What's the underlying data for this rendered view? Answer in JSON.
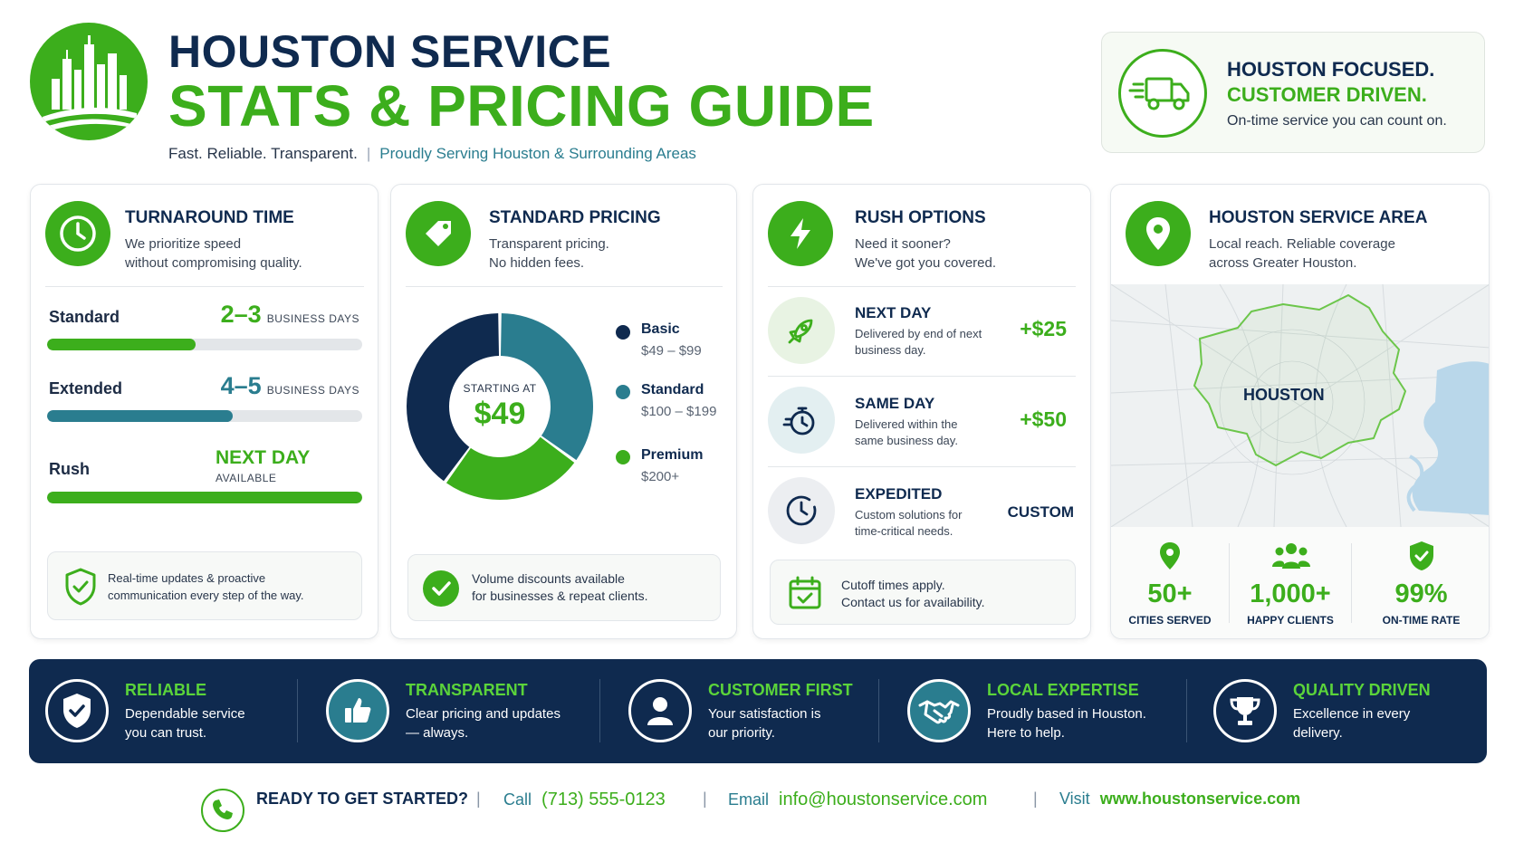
{
  "header": {
    "title_line1": "HOUSTON SERVICE",
    "title_line2": "STATS & PRICING GUIDE",
    "tagline": "Fast. Reliable. Transparent.",
    "subtagline": "Proudly Serving Houston & Surrounding Areas",
    "logo_icon": "city-skyline-icon"
  },
  "focus": {
    "line1": "HOUSTON FOCUSED.",
    "line2": "CUSTOMER DRIVEN.",
    "line3": "On-time service you can count on.",
    "icon": "delivery-truck-icon"
  },
  "turnaround": {
    "title": "TURNAROUND TIME",
    "subtitle_1": "We prioritize speed",
    "subtitle_2": "without compromising quality.",
    "rows": [
      {
        "label": "Standard",
        "value": "2–3",
        "unit": "BUSINESS DAYS",
        "fill": 0.47,
        "color": "#3cae1c"
      },
      {
        "label": "Extended",
        "value": "4–5",
        "unit": "BUSINESS DAYS",
        "fill": 0.59,
        "color": "#2a7d8f"
      },
      {
        "label": "Rush",
        "value": "NEXT DAY",
        "unit": "AVAILABLE",
        "fill": 1.0,
        "color": "#3cae1c"
      }
    ],
    "note_1": "Real-time updates & proactive",
    "note_2": "communication every step of the way."
  },
  "pricing": {
    "title": "STANDARD PRICING",
    "subtitle_1": "Transparent pricing.",
    "subtitle_2": "No hidden fees.",
    "center_label": "STARTING AT",
    "center_value": "$49",
    "note_1": "Volume discounts available",
    "note_2": "for businesses & repeat clients."
  },
  "chart_data": {
    "type": "pie",
    "categories": [
      "Basic",
      "Standard",
      "Premium"
    ],
    "ranges": [
      "$49 – $99",
      "$100 – $199",
      "$200+"
    ],
    "values": [
      40,
      35,
      25
    ],
    "colors": [
      "#0f2a4f",
      "#2a7d8f",
      "#3cae1c"
    ],
    "title": "",
    "legend": "right"
  },
  "rush": {
    "title": "RUSH OPTIONS",
    "subtitle_1": "Need it sooner?",
    "subtitle_2": "We've got you covered.",
    "options": [
      {
        "title": "NEXT DAY",
        "desc_1": "Delivered by end of next",
        "desc_2": "business day.",
        "price": "+$25",
        "icon": "rocket-icon"
      },
      {
        "title": "SAME DAY",
        "desc_1": "Delivered within the",
        "desc_2": "same business day.",
        "price": "+$50",
        "icon": "stopwatch-icon"
      },
      {
        "title": "EXPEDITED",
        "desc_1": "Custom solutions for",
        "desc_2": "time-critical needs.",
        "price": "CUSTOM",
        "icon": "clock-icon"
      }
    ],
    "note_1": "Cutoff times apply.",
    "note_2": "Contact us for availability."
  },
  "area": {
    "title": "HOUSTON SERVICE AREA",
    "subtitle_1": "Local reach. Reliable coverage",
    "subtitle_2": "across Greater Houston.",
    "map_label": "HOUSTON",
    "stats": [
      {
        "value": "50+",
        "label": "CITIES SERVED",
        "icon": "map-pin-icon"
      },
      {
        "value": "1,000+",
        "label": "HAPPY CLIENTS",
        "icon": "people-icon"
      },
      {
        "value": "99%",
        "label": "ON-TIME RATE",
        "icon": "shield-check-icon"
      }
    ]
  },
  "values": [
    {
      "title": "RELIABLE",
      "desc_1": "Dependable service",
      "desc_2": "you can trust.",
      "icon": "shield-check-icon"
    },
    {
      "title": "TRANSPARENT",
      "desc_1": "Clear pricing and updates",
      "desc_2": "— always.",
      "icon": "thumbs-up-icon"
    },
    {
      "title": "CUSTOMER FIRST",
      "desc_1": "Your satisfaction is",
      "desc_2": "our priority.",
      "icon": "person-icon"
    },
    {
      "title": "LOCAL EXPERTISE",
      "desc_1": "Proudly based in Houston.",
      "desc_2": "Here to help.",
      "icon": "handshake-icon"
    },
    {
      "title": "QUALITY DRIVEN",
      "desc_1": "Excellence in every",
      "desc_2": "delivery.",
      "icon": "trophy-icon"
    }
  ],
  "footer": {
    "cta": "READY TO GET STARTED?",
    "call_label": "Call",
    "phone": "(713) 555-0123",
    "email_label": "Email",
    "email": "info@houstonservice.com",
    "visit_label": "Visit",
    "website": "www.houstonservice.com",
    "icon": "phone-icon"
  }
}
